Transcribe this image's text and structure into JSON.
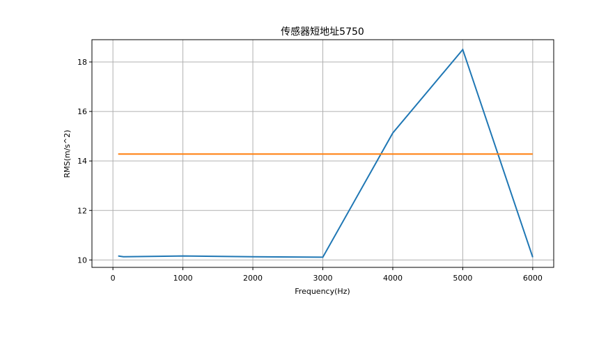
{
  "chart_data": {
    "type": "line",
    "title": "传感器短地址5750",
    "xlabel": "Frequency(Hz)",
    "ylabel": "RMS(m/s^2)",
    "xlim": [
      -300,
      6300
    ],
    "ylim": [
      9.7,
      18.9
    ],
    "xticks": [
      0,
      1000,
      2000,
      3000,
      4000,
      5000,
      6000
    ],
    "yticks": [
      10,
      12,
      14,
      16,
      18
    ],
    "grid": true,
    "series": [
      {
        "color": "#1f77b4",
        "x": [
          75,
          150,
          1000,
          2000,
          3000,
          4000,
          5000,
          6000
        ],
        "y": [
          10.16,
          10.13,
          10.16,
          10.13,
          10.11,
          15.13,
          18.5,
          10.11
        ]
      },
      {
        "color": "#ff7f0e",
        "x": [
          75,
          6000
        ],
        "y": [
          14.28,
          14.28
        ]
      }
    ]
  }
}
